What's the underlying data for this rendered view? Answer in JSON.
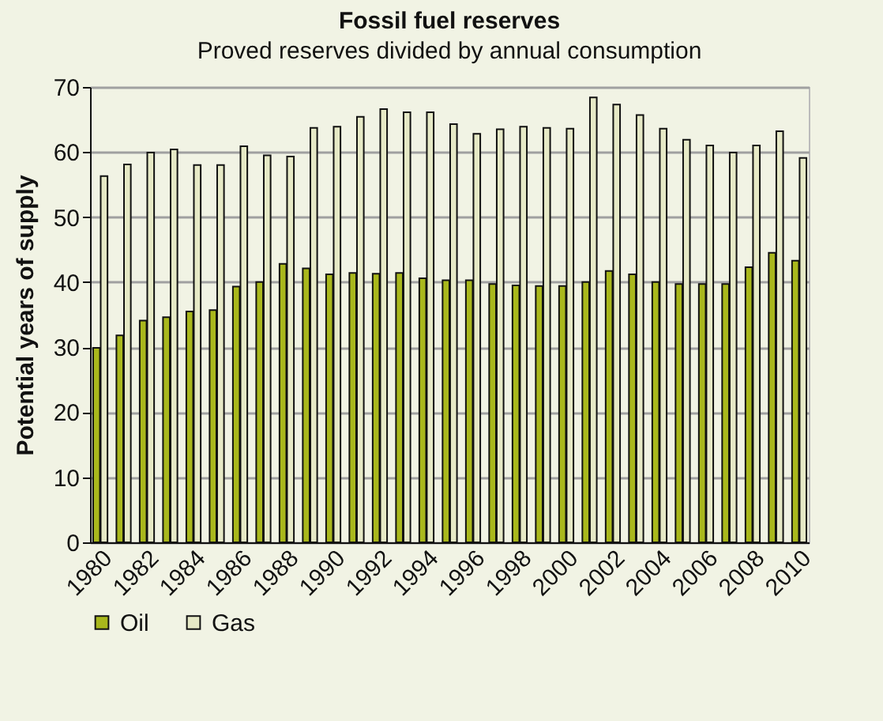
{
  "chart_data": {
    "type": "bar",
    "title": "Fossil fuel reserves",
    "subtitle": "Proved reserves divided by annual consumption",
    "ylabel": "Potential years of supply",
    "categories": [
      "1980",
      null,
      "1982",
      null,
      "1984",
      null,
      "1986",
      null,
      "1988",
      null,
      "1990",
      null,
      "1992",
      null,
      "1994",
      null,
      "1996",
      null,
      "1998",
      null,
      "2000",
      null,
      "2002",
      null,
      "2004",
      null,
      "2006",
      null,
      "2008",
      null,
      "2010"
    ],
    "series": [
      {
        "name": "Oil",
        "color": "#a9b81c",
        "values": [
          29.9,
          31.8,
          34.1,
          34.6,
          35.5,
          35.7,
          39.3,
          40.0,
          42.8,
          42.1,
          41.2,
          41.4,
          41.3,
          41.4,
          40.6,
          40.3,
          40.3,
          39.7,
          39.5,
          39.4,
          39.4,
          40.0,
          41.7,
          41.2,
          40.0,
          39.7,
          39.7,
          39.7,
          42.3,
          44.5,
          43.3
        ]
      },
      {
        "name": "Gas",
        "color": "#e6e9c6",
        "values": [
          56.3,
          58.1,
          59.9,
          60.4,
          58.0,
          58.0,
          60.9,
          59.5,
          59.3,
          63.7,
          63.9,
          65.4,
          66.6,
          66.1,
          66.1,
          64.3,
          62.8,
          63.5,
          63.9,
          63.7,
          63.6,
          68.4,
          67.3,
          65.7,
          63.6,
          61.9,
          61.0,
          59.9,
          61.0,
          63.2,
          59.1
        ]
      }
    ],
    "ylim": [
      0,
      70
    ],
    "yticks": [
      0,
      10,
      20,
      30,
      40,
      50,
      60,
      70
    ],
    "grid": "y",
    "legend": "bottom"
  }
}
